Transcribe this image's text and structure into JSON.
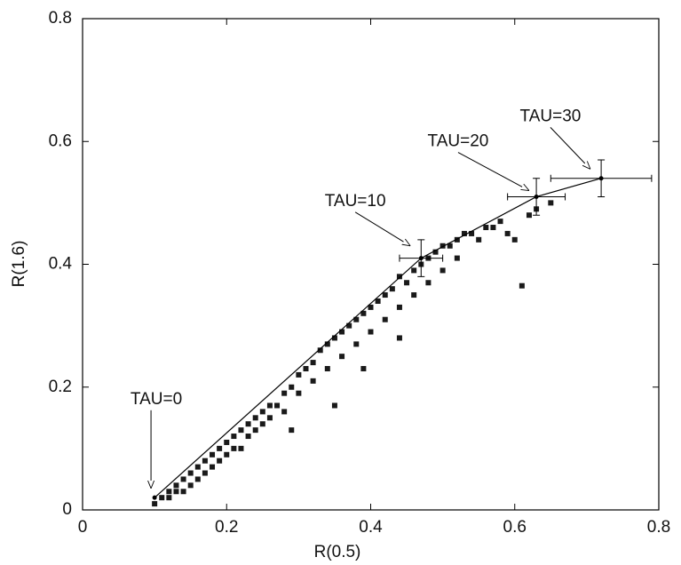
{
  "chart_data": {
    "type": "scatter",
    "xlabel": "R(0.5)",
    "ylabel": "R(1.6)",
    "xlim": [
      0,
      0.8
    ],
    "ylim": [
      0,
      0.8
    ],
    "xticks": [
      0,
      0.2,
      0.4,
      0.6,
      0.8
    ],
    "yticks": [
      0,
      0.2,
      0.4,
      0.6,
      0.8
    ],
    "grid": false,
    "series": [
      {
        "type": "scatter",
        "color": "#1a1a1a",
        "x": [
          0.1,
          0.11,
          0.12,
          0.12,
          0.13,
          0.13,
          0.14,
          0.14,
          0.15,
          0.15,
          0.16,
          0.16,
          0.17,
          0.17,
          0.18,
          0.18,
          0.19,
          0.19,
          0.2,
          0.2,
          0.21,
          0.21,
          0.22,
          0.22,
          0.23,
          0.23,
          0.24,
          0.24,
          0.25,
          0.25,
          0.26,
          0.26,
          0.27,
          0.28,
          0.28,
          0.29,
          0.3,
          0.3,
          0.31,
          0.32,
          0.32,
          0.33,
          0.34,
          0.34,
          0.35,
          0.36,
          0.36,
          0.37,
          0.38,
          0.38,
          0.39,
          0.4,
          0.4,
          0.41,
          0.42,
          0.42,
          0.43,
          0.44,
          0.44,
          0.45,
          0.46,
          0.46,
          0.47,
          0.48,
          0.48,
          0.49,
          0.5,
          0.5,
          0.51,
          0.52,
          0.52,
          0.53,
          0.54,
          0.55,
          0.56,
          0.57,
          0.58,
          0.59,
          0.6,
          0.61,
          0.62,
          0.63,
          0.65,
          0.39,
          0.44,
          0.29,
          0.35
        ],
        "y": [
          0.01,
          0.02,
          0.03,
          0.02,
          0.04,
          0.03,
          0.05,
          0.03,
          0.06,
          0.04,
          0.07,
          0.05,
          0.08,
          0.06,
          0.09,
          0.07,
          0.1,
          0.08,
          0.11,
          0.09,
          0.12,
          0.1,
          0.13,
          0.1,
          0.14,
          0.12,
          0.15,
          0.13,
          0.16,
          0.14,
          0.17,
          0.15,
          0.17,
          0.19,
          0.16,
          0.2,
          0.22,
          0.19,
          0.23,
          0.24,
          0.21,
          0.26,
          0.27,
          0.23,
          0.28,
          0.29,
          0.25,
          0.3,
          0.31,
          0.27,
          0.32,
          0.33,
          0.29,
          0.34,
          0.35,
          0.31,
          0.36,
          0.38,
          0.33,
          0.37,
          0.39,
          0.35,
          0.4,
          0.41,
          0.37,
          0.42,
          0.43,
          0.39,
          0.43,
          0.44,
          0.41,
          0.45,
          0.45,
          0.44,
          0.46,
          0.46,
          0.47,
          0.45,
          0.44,
          0.365,
          0.48,
          0.49,
          0.5,
          0.23,
          0.28,
          0.13,
          0.17
        ]
      },
      {
        "type": "line",
        "color": "#000000",
        "x": [
          0.1,
          0.47,
          0.63,
          0.72
        ],
        "y": [
          0.02,
          0.41,
          0.51,
          0.54
        ],
        "xerr": [
          null,
          0.03,
          0.04,
          0.07
        ],
        "yerr": [
          null,
          0.03,
          0.03,
          0.03
        ]
      }
    ],
    "annotations": [
      {
        "text": "TAU=0",
        "x": 0.095,
        "y": 0.035
      },
      {
        "text": "TAU=10",
        "x": 0.455,
        "y": 0.43
      },
      {
        "text": "TAU=20",
        "x": 0.62,
        "y": 0.52
      },
      {
        "text": "TAU=30",
        "x": 0.705,
        "y": 0.555
      }
    ]
  }
}
